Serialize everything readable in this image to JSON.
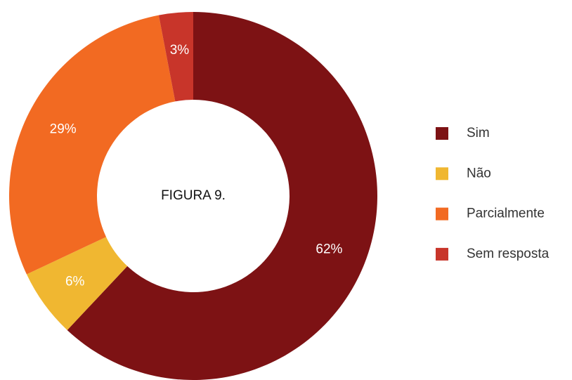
{
  "chart_data": {
    "type": "donut",
    "title": "FIGURA 9.",
    "categories": [
      "Sim",
      "Não",
      "Parcialmente",
      "Sem resposta"
    ],
    "values": [
      62,
      6,
      29,
      3
    ],
    "value_labels": [
      "62%",
      "6%",
      "29%",
      "3%"
    ],
    "colors": [
      "#7d1214",
      "#f0b731",
      "#f26a22",
      "#c8352a"
    ],
    "legend": "right"
  }
}
